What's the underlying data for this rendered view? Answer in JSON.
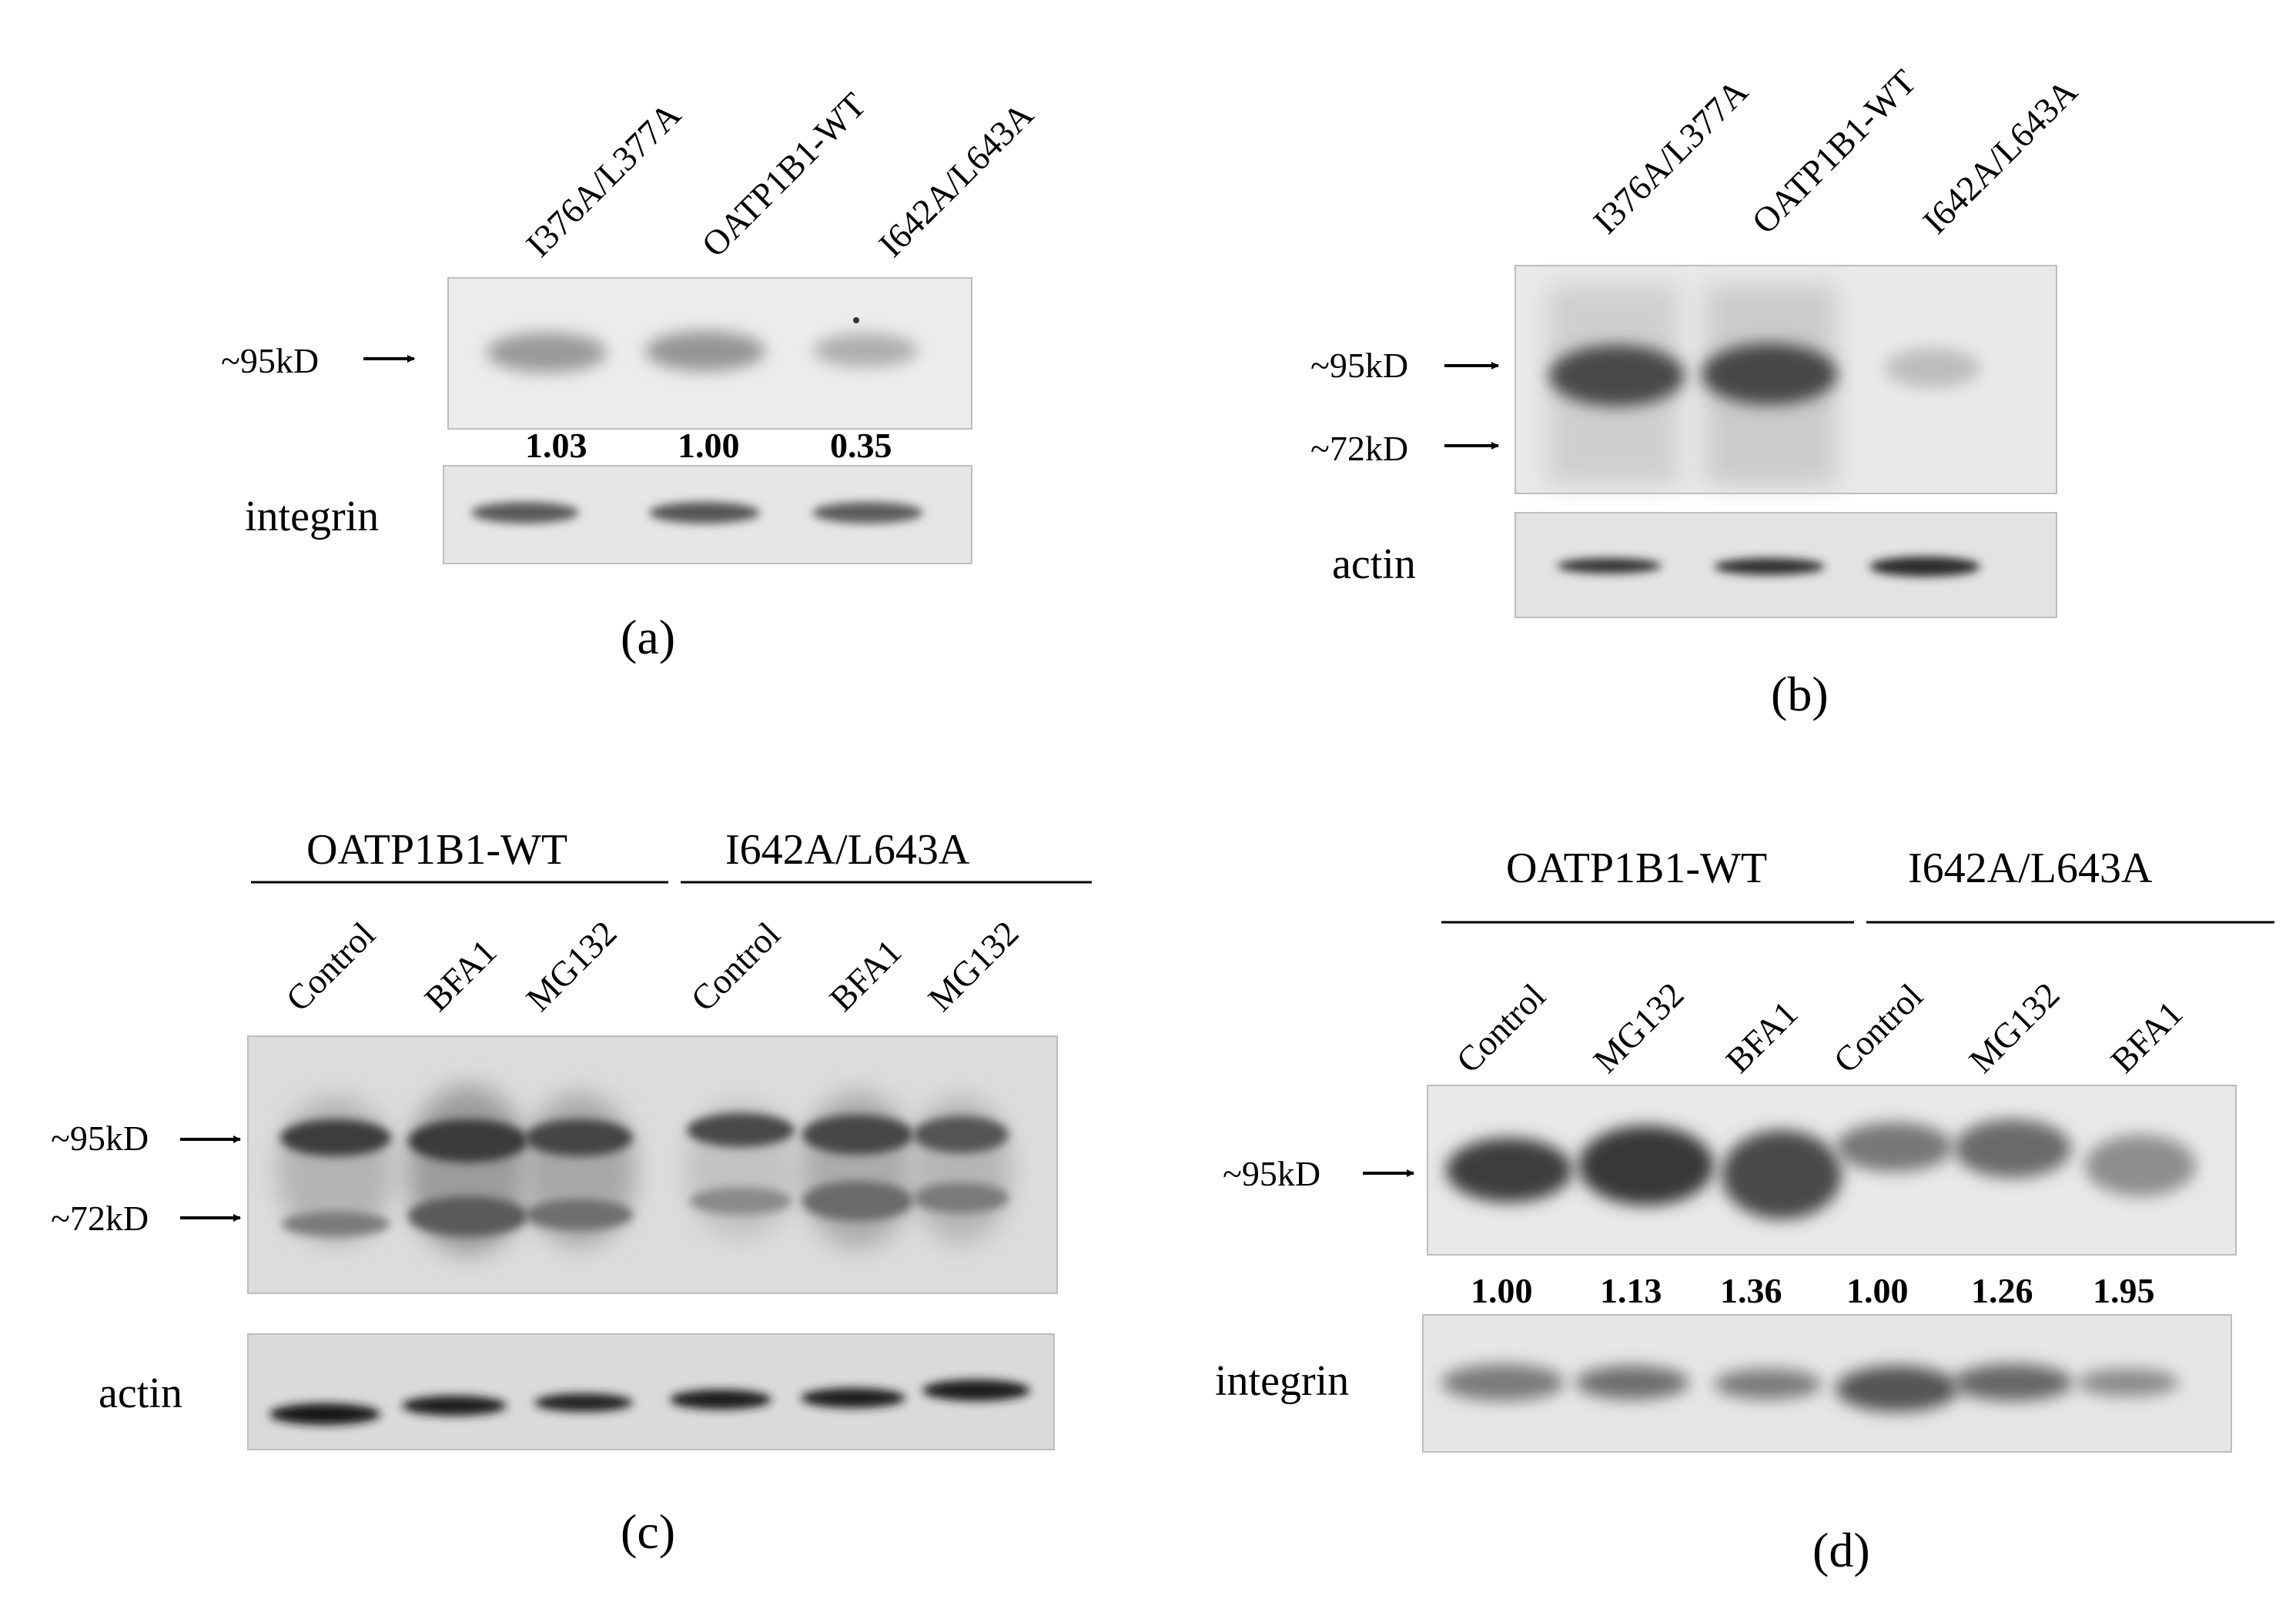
{
  "panels": [
    {
      "id": "a",
      "caption": "(a)",
      "lanes": [
        "I376A/L377A",
        "OATP1B1-WT",
        "I642A/L643A"
      ],
      "markers": [
        "~95kD"
      ],
      "quantification": [
        "1.03",
        "1.00",
        "0.35"
      ],
      "loading_control": "integrin"
    },
    {
      "id": "b",
      "caption": "(b)",
      "lanes": [
        "I376A/L377A",
        "OATP1B1-WT",
        "I642A/L643A"
      ],
      "markers": [
        "~95kD",
        "~72kD"
      ],
      "loading_control": "actin"
    },
    {
      "id": "c",
      "caption": "(c)",
      "groups": [
        "OATP1B1-WT",
        "I642A/L643A"
      ],
      "lanes": [
        "Control",
        "BFA1",
        "MG132",
        "Control",
        "BFA1",
        "MG132"
      ],
      "markers": [
        "~95kD",
        "~72kD"
      ],
      "loading_control": "actin"
    },
    {
      "id": "d",
      "caption": "(d)",
      "groups": [
        "OATP1B1-WT",
        "I642A/L643A"
      ],
      "lanes": [
        "Control",
        "MG132",
        "BFA1",
        "Control",
        "MG132",
        "BFA1"
      ],
      "markers": [
        "~95kD"
      ],
      "quantification": [
        "1.00",
        "1.13",
        "1.36",
        "1.00",
        "1.26",
        "1.95"
      ],
      "loading_control": "integrin"
    }
  ]
}
